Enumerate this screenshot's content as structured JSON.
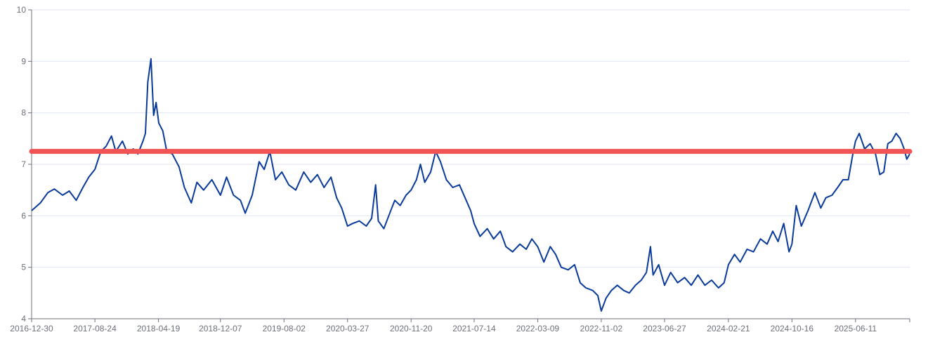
{
  "chart_data": {
    "type": "line",
    "title": "",
    "xlabel": "",
    "ylabel": "",
    "ylim": [
      4,
      10
    ],
    "y_ticks": [
      "4",
      "5",
      "6",
      "7",
      "8",
      "9",
      "10"
    ],
    "x_ticks": [
      "2016-12-30",
      "2017-08-24",
      "2018-04-19",
      "2018-12-07",
      "2019-08-02",
      "2020-03-27",
      "2020-11-20",
      "2021-07-14",
      "2022-03-09",
      "2022-11-02",
      "2023-06-27",
      "2024-02-21",
      "2024-10-16",
      "2025-06-11"
    ],
    "grid": "horizontal",
    "legend": "none",
    "x_start": "2016-12-30",
    "x_end": "2025-12-31",
    "series": [
      {
        "color": "#0a3a9a",
        "points": [
          [
            "2016-12-30",
            6.1
          ],
          [
            "2017-02-01",
            6.25
          ],
          [
            "2017-03-01",
            6.45
          ],
          [
            "2017-03-25",
            6.52
          ],
          [
            "2017-04-25",
            6.4
          ],
          [
            "2017-05-20",
            6.48
          ],
          [
            "2017-06-15",
            6.3
          ],
          [
            "2017-07-10",
            6.55
          ],
          [
            "2017-08-01",
            6.75
          ],
          [
            "2017-08-24",
            6.9
          ],
          [
            "2017-09-15",
            7.25
          ],
          [
            "2017-10-05",
            7.35
          ],
          [
            "2017-10-25",
            7.55
          ],
          [
            "2017-11-10",
            7.25
          ],
          [
            "2017-12-05",
            7.45
          ],
          [
            "2017-12-25",
            7.2
          ],
          [
            "2018-01-15",
            7.3
          ],
          [
            "2018-02-01",
            7.2
          ],
          [
            "2018-02-20",
            7.45
          ],
          [
            "2018-03-01",
            7.6
          ],
          [
            "2018-03-10",
            8.6
          ],
          [
            "2018-03-22",
            9.05
          ],
          [
            "2018-04-01",
            7.95
          ],
          [
            "2018-04-10",
            8.2
          ],
          [
            "2018-04-20",
            7.8
          ],
          [
            "2018-05-05",
            7.65
          ],
          [
            "2018-05-20",
            7.25
          ],
          [
            "2018-06-10",
            7.2
          ],
          [
            "2018-07-05",
            6.95
          ],
          [
            "2018-07-25",
            6.55
          ],
          [
            "2018-08-20",
            6.25
          ],
          [
            "2018-09-10",
            6.65
          ],
          [
            "2018-10-05",
            6.5
          ],
          [
            "2018-11-05",
            6.7
          ],
          [
            "2018-12-07",
            6.4
          ],
          [
            "2018-12-30",
            6.75
          ],
          [
            "2019-01-25",
            6.4
          ],
          [
            "2019-02-20",
            6.3
          ],
          [
            "2019-03-10",
            6.05
          ],
          [
            "2019-04-05",
            6.4
          ],
          [
            "2019-05-01",
            7.05
          ],
          [
            "2019-05-20",
            6.9
          ],
          [
            "2019-06-10",
            7.25
          ],
          [
            "2019-07-01",
            6.7
          ],
          [
            "2019-07-25",
            6.85
          ],
          [
            "2019-08-20",
            6.6
          ],
          [
            "2019-09-15",
            6.5
          ],
          [
            "2019-10-15",
            6.85
          ],
          [
            "2019-11-10",
            6.65
          ],
          [
            "2019-12-05",
            6.8
          ],
          [
            "2019-12-30",
            6.55
          ],
          [
            "2020-01-25",
            6.75
          ],
          [
            "2020-02-15",
            6.35
          ],
          [
            "2020-03-05",
            6.15
          ],
          [
            "2020-03-27",
            5.8
          ],
          [
            "2020-04-15",
            5.85
          ],
          [
            "2020-05-10",
            5.9
          ],
          [
            "2020-06-05",
            5.8
          ],
          [
            "2020-06-25",
            5.95
          ],
          [
            "2020-07-10",
            6.6
          ],
          [
            "2020-07-20",
            5.9
          ],
          [
            "2020-08-10",
            5.75
          ],
          [
            "2020-09-01",
            6.05
          ],
          [
            "2020-09-20",
            6.3
          ],
          [
            "2020-10-10",
            6.2
          ],
          [
            "2020-11-01",
            6.4
          ],
          [
            "2020-11-20",
            6.5
          ],
          [
            "2020-12-10",
            6.7
          ],
          [
            "2020-12-25",
            7.0
          ],
          [
            "2021-01-10",
            6.65
          ],
          [
            "2021-02-01",
            6.85
          ],
          [
            "2021-02-20",
            7.25
          ],
          [
            "2021-03-10",
            7.05
          ],
          [
            "2021-04-01",
            6.7
          ],
          [
            "2021-04-25",
            6.55
          ],
          [
            "2021-05-20",
            6.6
          ],
          [
            "2021-06-10",
            6.35
          ],
          [
            "2021-07-01",
            6.1
          ],
          [
            "2021-07-14",
            5.85
          ],
          [
            "2021-08-05",
            5.6
          ],
          [
            "2021-09-01",
            5.75
          ],
          [
            "2021-09-25",
            5.55
          ],
          [
            "2021-10-20",
            5.7
          ],
          [
            "2021-11-10",
            5.4
          ],
          [
            "2021-12-05",
            5.3
          ],
          [
            "2022-01-01",
            5.45
          ],
          [
            "2022-01-25",
            5.35
          ],
          [
            "2022-02-15",
            5.55
          ],
          [
            "2022-03-09",
            5.4
          ],
          [
            "2022-04-01",
            5.1
          ],
          [
            "2022-04-25",
            5.4
          ],
          [
            "2022-05-15",
            5.25
          ],
          [
            "2022-06-05",
            5.0
          ],
          [
            "2022-07-01",
            4.95
          ],
          [
            "2022-07-25",
            5.05
          ],
          [
            "2022-08-15",
            4.7
          ],
          [
            "2022-09-05",
            4.6
          ],
          [
            "2022-10-01",
            4.55
          ],
          [
            "2022-10-20",
            4.45
          ],
          [
            "2022-11-02",
            4.15
          ],
          [
            "2022-11-20",
            4.4
          ],
          [
            "2022-12-10",
            4.55
          ],
          [
            "2023-01-01",
            4.65
          ],
          [
            "2023-01-25",
            4.55
          ],
          [
            "2023-02-15",
            4.5
          ],
          [
            "2023-03-10",
            4.65
          ],
          [
            "2023-04-01",
            4.75
          ],
          [
            "2023-04-20",
            4.9
          ],
          [
            "2023-05-05",
            5.4
          ],
          [
            "2023-05-15",
            4.85
          ],
          [
            "2023-06-05",
            5.05
          ],
          [
            "2023-06-27",
            4.65
          ],
          [
            "2023-07-20",
            4.9
          ],
          [
            "2023-08-15",
            4.7
          ],
          [
            "2023-09-10",
            4.8
          ],
          [
            "2023-10-05",
            4.65
          ],
          [
            "2023-10-30",
            4.85
          ],
          [
            "2023-11-25",
            4.65
          ],
          [
            "2023-12-20",
            4.75
          ],
          [
            "2024-01-15",
            4.6
          ],
          [
            "2024-02-05",
            4.7
          ],
          [
            "2024-02-21",
            5.05
          ],
          [
            "2024-03-15",
            5.25
          ],
          [
            "2024-04-05",
            5.1
          ],
          [
            "2024-05-01",
            5.35
          ],
          [
            "2024-05-25",
            5.3
          ],
          [
            "2024-06-20",
            5.55
          ],
          [
            "2024-07-15",
            5.45
          ],
          [
            "2024-08-05",
            5.7
          ],
          [
            "2024-08-25",
            5.5
          ],
          [
            "2024-09-15",
            5.85
          ],
          [
            "2024-10-05",
            5.3
          ],
          [
            "2024-10-16",
            5.45
          ],
          [
            "2024-11-01",
            6.2
          ],
          [
            "2024-11-20",
            5.8
          ],
          [
            "2024-12-15",
            6.1
          ],
          [
            "2025-01-10",
            6.45
          ],
          [
            "2025-02-01",
            6.15
          ],
          [
            "2025-02-20",
            6.35
          ],
          [
            "2025-03-15",
            6.4
          ],
          [
            "2025-04-05",
            6.55
          ],
          [
            "2025-04-25",
            6.7
          ],
          [
            "2025-05-15",
            6.7
          ],
          [
            "2025-06-01",
            7.2
          ],
          [
            "2025-06-11",
            7.45
          ],
          [
            "2025-06-25",
            7.6
          ],
          [
            "2025-07-15",
            7.3
          ],
          [
            "2025-08-05",
            7.4
          ],
          [
            "2025-08-25",
            7.2
          ],
          [
            "2025-09-10",
            6.8
          ],
          [
            "2025-09-25",
            6.85
          ],
          [
            "2025-10-10",
            7.4
          ],
          [
            "2025-10-25",
            7.45
          ],
          [
            "2025-11-10",
            7.6
          ],
          [
            "2025-11-25",
            7.5
          ],
          [
            "2025-12-10",
            7.3
          ],
          [
            "2025-12-20",
            7.1
          ],
          [
            "2025-12-31",
            7.2
          ]
        ]
      }
    ],
    "reference_line": {
      "y": 7.25,
      "color": "#f05454"
    }
  }
}
